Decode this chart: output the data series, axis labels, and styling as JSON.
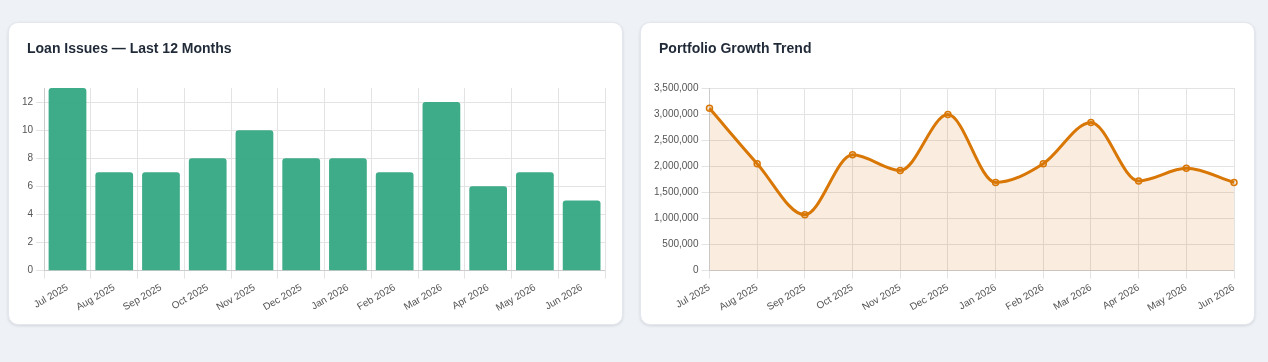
{
  "chart_data": [
    {
      "type": "bar",
      "title": "Loan Issues — Last 12 Months",
      "categories": [
        "Jul 2025",
        "Aug 2025",
        "Sep 2025",
        "Oct 2025",
        "Nov 2025",
        "Dec 2025",
        "Jan 2026",
        "Feb 2026",
        "Mar 2026",
        "Apr 2026",
        "May 2026",
        "Jun 2026"
      ],
      "values": [
        13,
        7,
        7,
        8,
        10,
        8,
        8,
        7,
        12,
        6,
        7,
        5
      ],
      "color": "#34a883",
      "ylim": [
        0,
        13
      ],
      "yticks": [
        0,
        2,
        4,
        6,
        8,
        10,
        12
      ],
      "grid": true
    },
    {
      "type": "area",
      "title": "Portfolio Growth Trend",
      "categories": [
        "Jul 2025",
        "Aug 2025",
        "Sep 2025",
        "Oct 2025",
        "Nov 2025",
        "Dec 2025",
        "Jan 2026",
        "Feb 2026",
        "Mar 2026",
        "Apr 2026",
        "May 2026",
        "Jun 2026"
      ],
      "values": [
        3110000,
        2050000,
        1070000,
        2220000,
        1920000,
        2990000,
        1690000,
        2050000,
        2840000,
        1720000,
        1960000,
        1690000
      ],
      "color": "#d97706",
      "ylim": [
        0,
        3500000
      ],
      "yticks": [
        0,
        {
          "value": 500000,
          "label": "500,000"
        },
        {
          "value": 1000000,
          "label": "1,000,000"
        },
        {
          "value": 1500000,
          "label": "1,500,000"
        },
        {
          "value": 2000000,
          "label": "2,000,000"
        },
        {
          "value": 2500000,
          "label": "2,500,000"
        },
        {
          "value": 3000000,
          "label": "3,000,000"
        },
        {
          "value": 3500000,
          "label": "3,500,000"
        }
      ],
      "grid": true,
      "marker": "circle"
    }
  ]
}
